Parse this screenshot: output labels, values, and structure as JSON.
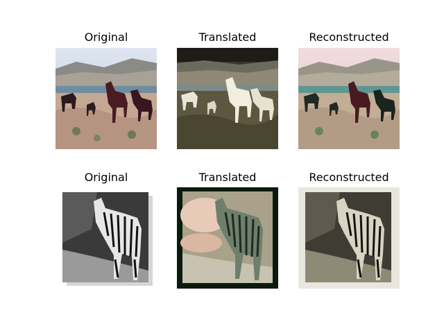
{
  "figure": {
    "rows": [
      {
        "panels": [
          {
            "title": "Original",
            "image": "horses-original"
          },
          {
            "title": "Translated",
            "image": "horses-translated-to-zebra-style"
          },
          {
            "title": "Reconstructed",
            "image": "horses-reconstructed"
          }
        ]
      },
      {
        "panels": [
          {
            "title": "Original",
            "image": "zebra-original-grayscale"
          },
          {
            "title": "Translated",
            "image": "zebra-translated-to-horse-style"
          },
          {
            "title": "Reconstructed",
            "image": "zebra-reconstructed"
          }
        ]
      }
    ]
  }
}
